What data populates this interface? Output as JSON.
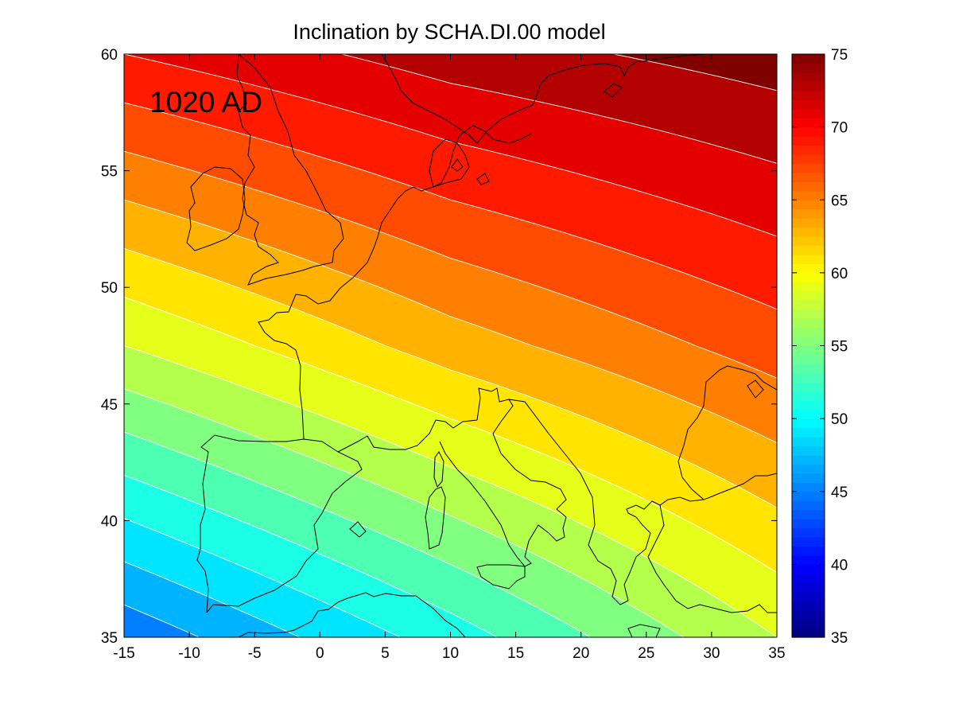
{
  "chart_data": {
    "type": "heatmap",
    "title": "Inclination by SCHA.DI.00 model",
    "annotation": "1020 AD",
    "xlabel": "",
    "ylabel": "",
    "xlim": [
      -15,
      35
    ],
    "ylim": [
      35,
      60
    ],
    "x_ticks": [
      -15,
      -10,
      -5,
      0,
      5,
      10,
      15,
      20,
      25,
      30,
      35
    ],
    "y_ticks": [
      35,
      40,
      45,
      50,
      55,
      60
    ],
    "x_tick_labels": [
      "-15",
      "-10",
      "-5",
      "0",
      "5",
      "10",
      "15",
      "20",
      "25",
      "30",
      "35"
    ],
    "y_tick_labels": [
      "35",
      "40",
      "45",
      "50",
      "55",
      "60"
    ],
    "colorbar": {
      "range": [
        35,
        75
      ],
      "ticks": [
        35,
        40,
        45,
        50,
        55,
        60,
        65,
        70,
        75
      ],
      "tick_labels": [
        "35",
        "40",
        "45",
        "50",
        "55",
        "60",
        "65",
        "70",
        "75"
      ],
      "colormap": "jet"
    },
    "contour_interval": 2,
    "contour_line_color": "#ffffff",
    "coastline_color": "#000000",
    "inclination_samples": [
      {
        "lon": -15,
        "lat": 35,
        "value": 44.5
      },
      {
        "lon": -15,
        "lat": 47.5,
        "value": 58
      },
      {
        "lon": -15,
        "lat": 60,
        "value": 70
      },
      {
        "lon": 10,
        "lat": 35,
        "value": 51
      },
      {
        "lon": 10,
        "lat": 47.5,
        "value": 63
      },
      {
        "lon": 10,
        "lat": 60,
        "value": 73
      },
      {
        "lon": 35,
        "lat": 35,
        "value": 58
      },
      {
        "lon": 35,
        "lat": 47.5,
        "value": 67
      },
      {
        "lon": 35,
        "lat": 60,
        "value": 75
      }
    ]
  }
}
